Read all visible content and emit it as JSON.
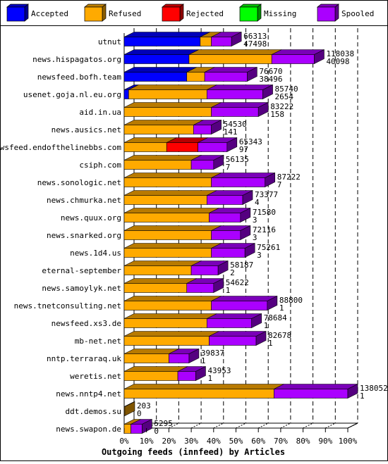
{
  "chart_data": {
    "type": "bar",
    "orientation": "horizontal",
    "stacked": true,
    "xlabel": "Outgoing feeds (innfeed) by Articles",
    "xlim": [
      0,
      100
    ],
    "x_ticks": [
      "0%",
      "10%",
      "20%",
      "30%",
      "40%",
      "50%",
      "60%",
      "70%",
      "80%",
      "90%",
      "100%"
    ],
    "legend_position": "top",
    "series": [
      {
        "name": "Accepted",
        "color": "#0000ff"
      },
      {
        "name": "Refused",
        "color": "#ffaa00"
      },
      {
        "name": "Rejected",
        "color": "#ff0000"
      },
      {
        "name": "Missing",
        "color": "#00ff00"
      },
      {
        "name": "Spooled",
        "color": "#aa00ff"
      }
    ],
    "categories": [
      "utnut",
      "news.hispagatos.org",
      "newsfeed.bofh.team",
      "usenet.goja.nl.eu.org",
      "aid.in.ua",
      "news.ausics.net",
      "newsfeed.endofthelinebbs.com",
      "csiph.com",
      "news.sonologic.net",
      "news.chmurka.net",
      "news.quux.org",
      "news.snarked.org",
      "news.1d4.us",
      "eternal-september",
      "news.samoylyk.net",
      "news.tnetconsulting.net",
      "newsfeed.xs3.de",
      "mb-net.net",
      "nntp.terraraq.uk",
      "weretis.net",
      "news.nntp4.net",
      "ddt.demos.su",
      "news.swapon.de"
    ],
    "bars": [
      {
        "accepted": 34,
        "refused": 5,
        "rejected": 0,
        "missing": 0,
        "spooled": 9,
        "total": "66313",
        "accepted_count": "47498"
      },
      {
        "accepted": 29,
        "refused": 37,
        "rejected": 0,
        "missing": 0,
        "spooled": 19,
        "total": "118038",
        "accepted_count": "40098"
      },
      {
        "accepted": 28,
        "refused": 8,
        "rejected": 0,
        "missing": 0,
        "spooled": 19,
        "total": "76670",
        "accepted_count": "38496"
      },
      {
        "accepted": 2,
        "refused": 35,
        "rejected": 0,
        "missing": 0,
        "spooled": 25,
        "total": "85740",
        "accepted_count": "2654"
      },
      {
        "accepted": 0,
        "refused": 39,
        "rejected": 0,
        "missing": 0,
        "spooled": 21,
        "total": "83222",
        "accepted_count": "158"
      },
      {
        "accepted": 0,
        "refused": 31,
        "rejected": 0,
        "missing": 0,
        "spooled": 8,
        "total": "54530",
        "accepted_count": "141"
      },
      {
        "accepted": 0,
        "refused": 19,
        "rejected": 14,
        "missing": 0,
        "spooled": 13,
        "total": "65343",
        "accepted_count": "97"
      },
      {
        "accepted": 0,
        "refused": 30,
        "rejected": 0,
        "missing": 0,
        "spooled": 10,
        "total": "56135",
        "accepted_count": "7"
      },
      {
        "accepted": 0,
        "refused": 39,
        "rejected": 0,
        "missing": 0,
        "spooled": 24,
        "total": "87222",
        "accepted_count": "7"
      },
      {
        "accepted": 0,
        "refused": 37,
        "rejected": 0,
        "missing": 0,
        "spooled": 16,
        "total": "73377",
        "accepted_count": "4"
      },
      {
        "accepted": 0,
        "refused": 38,
        "rejected": 0,
        "missing": 0,
        "spooled": 14,
        "total": "71580",
        "accepted_count": "3"
      },
      {
        "accepted": 0,
        "refused": 39,
        "rejected": 0,
        "missing": 0,
        "spooled": 13,
        "total": "72116",
        "accepted_count": "3"
      },
      {
        "accepted": 0,
        "refused": 39,
        "rejected": 0,
        "missing": 0,
        "spooled": 15,
        "total": "75261",
        "accepted_count": "3"
      },
      {
        "accepted": 0,
        "refused": 30,
        "rejected": 0,
        "missing": 0,
        "spooled": 12,
        "total": "58187",
        "accepted_count": "2"
      },
      {
        "accepted": 0,
        "refused": 28,
        "rejected": 0,
        "missing": 0,
        "spooled": 12,
        "total": "54622",
        "accepted_count": "1"
      },
      {
        "accepted": 0,
        "refused": 39,
        "rejected": 0,
        "missing": 0,
        "spooled": 25,
        "total": "88800",
        "accepted_count": "1"
      },
      {
        "accepted": 0,
        "refused": 37,
        "rejected": 0,
        "missing": 0,
        "spooled": 20,
        "total": "78684",
        "accepted_count": "1"
      },
      {
        "accepted": 0,
        "refused": 38,
        "rejected": 0,
        "missing": 0,
        "spooled": 21,
        "total": "82678",
        "accepted_count": "1"
      },
      {
        "accepted": 0,
        "refused": 20,
        "rejected": 0,
        "missing": 0,
        "spooled": 9,
        "total": "39837",
        "accepted_count": "1"
      },
      {
        "accepted": 0,
        "refused": 24,
        "rejected": 0,
        "missing": 0,
        "spooled": 8,
        "total": "43953",
        "accepted_count": "1"
      },
      {
        "accepted": 0,
        "refused": 67,
        "rejected": 0,
        "missing": 0,
        "spooled": 33,
        "total": "138052",
        "accepted_count": "1"
      },
      {
        "accepted": 0,
        "refused": 0.3,
        "rejected": 0,
        "missing": 0,
        "spooled": 0,
        "total": "203",
        "accepted_count": "0"
      },
      {
        "accepted": 0,
        "refused": 3,
        "rejected": 0,
        "missing": 0,
        "spooled": 5,
        "total": "5295",
        "accepted_count": "0"
      }
    ]
  }
}
